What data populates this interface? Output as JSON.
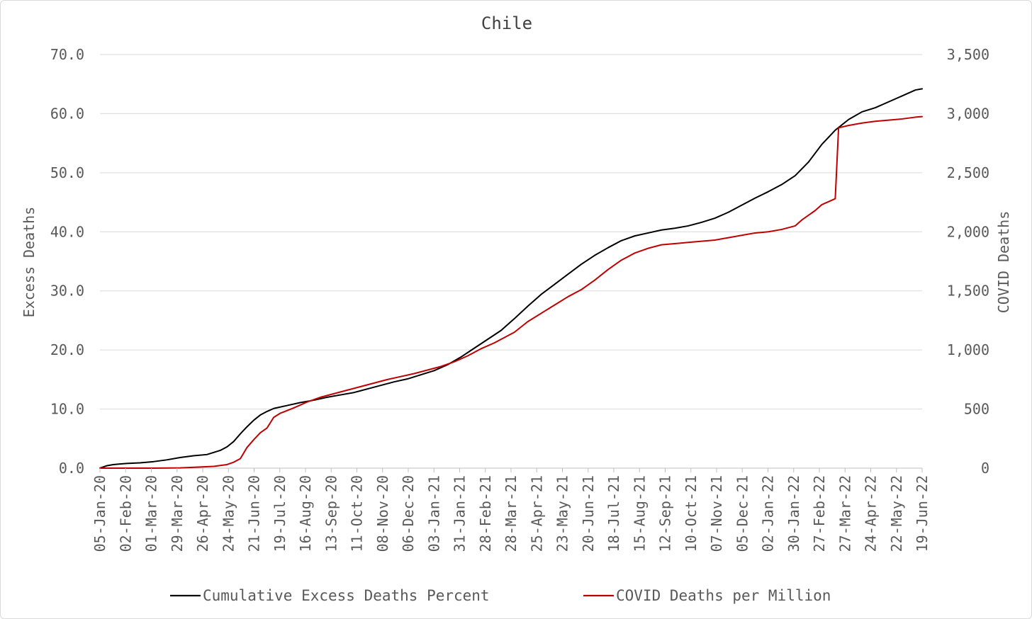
{
  "chart_data": {
    "type": "line",
    "title": "Chile",
    "ylabel": "Excess Deaths",
    "y2label": "COVID Deaths",
    "ylim": [
      0,
      70
    ],
    "y2lim": [
      0,
      3500
    ],
    "yticks": [
      "0.0",
      "10.0",
      "20.0",
      "30.0",
      "40.0",
      "50.0",
      "60.0",
      "70.0"
    ],
    "y2ticks": [
      "0",
      "500",
      "1,000",
      "1,500",
      "2,000",
      "2,500",
      "3,000",
      "3,500"
    ],
    "xticks": [
      "05-Jan-20",
      "02-Feb-20",
      "01-Mar-20",
      "29-Mar-20",
      "26-Apr-20",
      "24-May-20",
      "21-Jun-20",
      "19-Jul-20",
      "16-Aug-20",
      "13-Sep-20",
      "11-Oct-20",
      "08-Nov-20",
      "06-Dec-20",
      "03-Jan-21",
      "31-Jan-21",
      "28-Feb-21",
      "28-Mar-21",
      "25-Apr-21",
      "23-May-21",
      "20-Jun-21",
      "18-Jul-21",
      "15-Aug-21",
      "12-Sep-21",
      "10-Oct-21",
      "07-Nov-21",
      "05-Dec-21",
      "02-Jan-22",
      "30-Jan-22",
      "27-Feb-22",
      "27-Mar-22",
      "24-Apr-22",
      "22-May-22",
      "19-Jun-22"
    ],
    "x_unit": "weeks since 05-Jan-20",
    "grid": true,
    "legend_position": "bottom",
    "series": [
      {
        "name": "Cumulative Excess Deaths Percent",
        "axis": "left",
        "color": "#000000",
        "points": [
          [
            0,
            0.0
          ],
          [
            1,
            0.4
          ],
          [
            2,
            0.6
          ],
          [
            3,
            0.7
          ],
          [
            4,
            0.8
          ],
          [
            6,
            0.9
          ],
          [
            8,
            1.1
          ],
          [
            10,
            1.4
          ],
          [
            12,
            1.8
          ],
          [
            14,
            2.1
          ],
          [
            16,
            2.3
          ],
          [
            18,
            3.0
          ],
          [
            19,
            3.6
          ],
          [
            20,
            4.5
          ],
          [
            21,
            5.8
          ],
          [
            22,
            7.0
          ],
          [
            23,
            8.1
          ],
          [
            24,
            9.0
          ],
          [
            25,
            9.6
          ],
          [
            26,
            10.1
          ],
          [
            28,
            10.6
          ],
          [
            30,
            11.1
          ],
          [
            32,
            11.5
          ],
          [
            34,
            12.0
          ],
          [
            36,
            12.4
          ],
          [
            38,
            12.8
          ],
          [
            40,
            13.4
          ],
          [
            42,
            14.0
          ],
          [
            44,
            14.6
          ],
          [
            46,
            15.1
          ],
          [
            48,
            15.8
          ],
          [
            50,
            16.5
          ],
          [
            52,
            17.5
          ],
          [
            54,
            18.8
          ],
          [
            56,
            20.3
          ],
          [
            58,
            21.8
          ],
          [
            60,
            23.3
          ],
          [
            62,
            25.3
          ],
          [
            64,
            27.4
          ],
          [
            66,
            29.4
          ],
          [
            68,
            31.1
          ],
          [
            70,
            32.8
          ],
          [
            72,
            34.5
          ],
          [
            74,
            36.0
          ],
          [
            76,
            37.3
          ],
          [
            78,
            38.5
          ],
          [
            80,
            39.3
          ],
          [
            82,
            39.8
          ],
          [
            84,
            40.3
          ],
          [
            86,
            40.6
          ],
          [
            88,
            41.0
          ],
          [
            90,
            41.6
          ],
          [
            92,
            42.3
          ],
          [
            94,
            43.3
          ],
          [
            96,
            44.5
          ],
          [
            98,
            45.7
          ],
          [
            100,
            46.8
          ],
          [
            102,
            48.0
          ],
          [
            104,
            49.5
          ],
          [
            106,
            51.8
          ],
          [
            108,
            54.8
          ],
          [
            110,
            57.2
          ],
          [
            112,
            59.0
          ],
          [
            114,
            60.3
          ],
          [
            116,
            61.0
          ],
          [
            118,
            62.0
          ],
          [
            120,
            63.0
          ],
          [
            122,
            64.0
          ],
          [
            123,
            64.2
          ]
        ]
      },
      {
        "name": "COVID Deaths per Million",
        "axis": "right",
        "color": "#c00000",
        "points": [
          [
            0,
            0
          ],
          [
            4,
            0
          ],
          [
            8,
            0
          ],
          [
            12,
            2
          ],
          [
            15,
            10
          ],
          [
            17,
            15
          ],
          [
            19,
            30
          ],
          [
            20,
            50
          ],
          [
            21,
            80
          ],
          [
            22,
            175
          ],
          [
            23,
            240
          ],
          [
            24,
            300
          ],
          [
            25,
            340
          ],
          [
            26,
            430
          ],
          [
            27,
            465
          ],
          [
            29,
            510
          ],
          [
            31,
            560
          ],
          [
            33,
            600
          ],
          [
            35,
            630
          ],
          [
            37,
            660
          ],
          [
            39,
            690
          ],
          [
            41,
            720
          ],
          [
            43,
            750
          ],
          [
            45,
            775
          ],
          [
            47,
            800
          ],
          [
            49,
            830
          ],
          [
            51,
            860
          ],
          [
            53,
            900
          ],
          [
            55,
            950
          ],
          [
            57,
            1010
          ],
          [
            59,
            1060
          ],
          [
            61,
            1120
          ],
          [
            62,
            1150
          ],
          [
            64,
            1240
          ],
          [
            66,
            1310
          ],
          [
            68,
            1380
          ],
          [
            70,
            1450
          ],
          [
            72,
            1510
          ],
          [
            74,
            1590
          ],
          [
            76,
            1680
          ],
          [
            78,
            1760
          ],
          [
            80,
            1820
          ],
          [
            82,
            1860
          ],
          [
            84,
            1890
          ],
          [
            86,
            1900
          ],
          [
            88,
            1910
          ],
          [
            90,
            1920
          ],
          [
            92,
            1930
          ],
          [
            94,
            1950
          ],
          [
            96,
            1970
          ],
          [
            98,
            1990
          ],
          [
            100,
            2000
          ],
          [
            102,
            2020
          ],
          [
            104,
            2050
          ],
          [
            105,
            2100
          ],
          [
            107,
            2180
          ],
          [
            108,
            2230
          ],
          [
            110,
            2280
          ],
          [
            110.5,
            2880
          ],
          [
            112,
            2900
          ],
          [
            114,
            2920
          ],
          [
            116,
            2935
          ],
          [
            118,
            2945
          ],
          [
            120,
            2955
          ],
          [
            122,
            2970
          ],
          [
            123,
            2975
          ]
        ]
      }
    ]
  }
}
